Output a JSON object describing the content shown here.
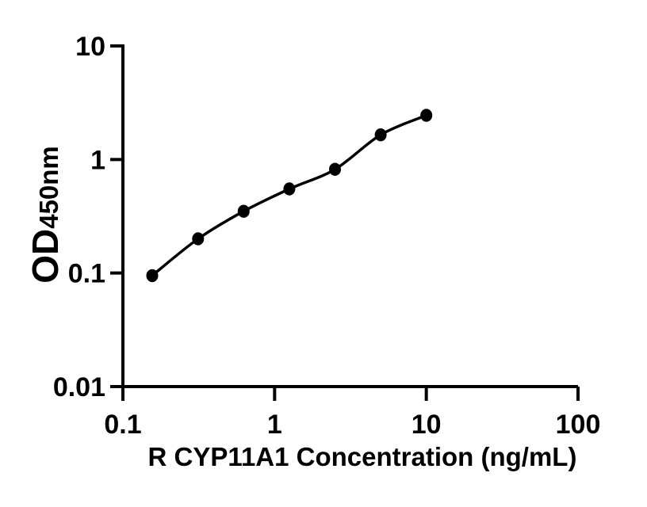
{
  "figure": {
    "background": "#ffffff",
    "foreground": "#000000"
  },
  "chart_data": {
    "type": "scatter",
    "xlabel": "R CYP11A1 Concentration (ng/mL)",
    "ylabel_main": "OD",
    "ylabel_sub": "450nm",
    "x_scale": "log",
    "y_scale": "log",
    "xlim": [
      0.1,
      100
    ],
    "ylim": [
      0.01,
      10
    ],
    "x_ticks": [
      0.1,
      1,
      10,
      100
    ],
    "x_tick_labels": [
      "0.1",
      "1",
      "10",
      "100"
    ],
    "y_ticks": [
      10,
      1,
      0.1,
      0.01
    ],
    "y_tick_labels": [
      "10",
      "1",
      "0.1",
      "0.01"
    ],
    "x": [
      0.156,
      0.313,
      0.625,
      1.25,
      2.5,
      5,
      10
    ],
    "y": [
      0.095,
      0.2,
      0.35,
      0.55,
      0.82,
      1.65,
      2.45
    ],
    "fit_line": true,
    "grid": false,
    "legend": null,
    "marker_color": "#000000",
    "line_color": "#000000"
  }
}
